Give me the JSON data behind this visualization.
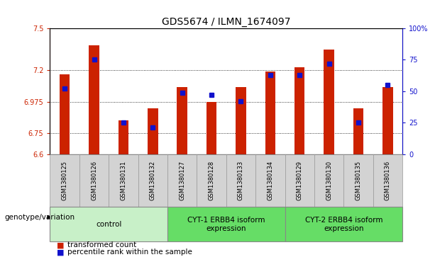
{
  "title": "GDS5674 / ILMN_1674097",
  "samples": [
    "GSM1380125",
    "GSM1380126",
    "GSM1380131",
    "GSM1380132",
    "GSM1380127",
    "GSM1380128",
    "GSM1380133",
    "GSM1380134",
    "GSM1380129",
    "GSM1380130",
    "GSM1380135",
    "GSM1380136"
  ],
  "red_values": [
    7.17,
    7.38,
    6.84,
    6.93,
    7.08,
    6.975,
    7.08,
    7.19,
    7.22,
    7.35,
    6.93,
    7.08
  ],
  "blue_values": [
    52,
    75,
    25,
    21,
    49,
    47,
    42,
    63,
    63,
    72,
    25,
    55
  ],
  "ylim_left": [
    6.6,
    7.5
  ],
  "ylim_right": [
    0,
    100
  ],
  "yticks_left": [
    6.6,
    6.75,
    6.975,
    7.2,
    7.5
  ],
  "yticks_right": [
    0,
    25,
    50,
    75,
    100
  ],
  "ytick_labels_right": [
    "0",
    "25",
    "50",
    "75",
    "100%"
  ],
  "ytick_labels_left": [
    "6.6",
    "6.75",
    "6.975",
    "7.2",
    "7.5"
  ],
  "group_colors": [
    "#c8f0c8",
    "#66dd66",
    "#66dd66"
  ],
  "group_labels": [
    "control",
    "CYT-1 ERBB4 isoform\nexpression",
    "CYT-2 ERBB4 isoform\nexpression"
  ],
  "group_starts": [
    0,
    4,
    8
  ],
  "group_ends": [
    3,
    7,
    11
  ],
  "legend_labels": [
    "transformed count",
    "percentile rank within the sample"
  ],
  "genotype_label": "genotype/variation",
  "bar_width": 0.35,
  "bar_color_red": "#cc2200",
  "bar_color_blue": "#1111cc",
  "dot_size": 4,
  "tick_gray_bg": "#d3d3d3",
  "grid_dotted_color": "#555555",
  "title_fontsize": 10,
  "tick_fontsize": 7,
  "label_fontsize": 7.5,
  "group_fontsize": 7.5
}
